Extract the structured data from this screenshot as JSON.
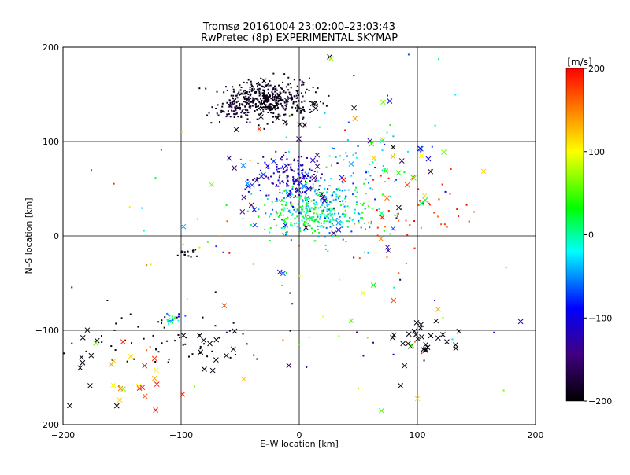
{
  "chart_data": {
    "type": "scatter",
    "title": "Tromsø 20161004 23:02:00–23:03:43",
    "subtitle": "RwPretec (8p) EXPERIMENTAL SKYMAP",
    "xlabel": "E–W location [km]",
    "ylabel": "N–S location [km]",
    "xlim": [
      -200,
      200
    ],
    "ylim": [
      -200,
      200
    ],
    "xticks": [
      -200,
      -100,
      0,
      100,
      200
    ],
    "yticks": [
      -200,
      -100,
      0,
      100,
      200
    ],
    "grid": true,
    "colorbar": {
      "label": "[m/s]",
      "range": [
        -200,
        200
      ],
      "ticks": [
        200,
        100,
        0,
        -100,
        -200
      ],
      "colormap": "rainbow"
    },
    "clusters": [
      {
        "name": "north-arc",
        "x": -25,
        "y": 145,
        "sx": 18,
        "sy": 10,
        "n": 420,
        "v": [
          -200,
          -175
        ],
        "marker": "dot"
      },
      {
        "name": "north-arc-west",
        "x": -55,
        "y": 132,
        "sx": 10,
        "sy": 6,
        "n": 60,
        "v": [
          -200,
          -150
        ],
        "marker": "dot"
      },
      {
        "name": "central-blob",
        "x": 12,
        "y": 28,
        "sx": 20,
        "sy": 14,
        "n": 380,
        "v": [
          -80,
          20
        ],
        "marker": "dot"
      },
      {
        "name": "central-blue",
        "x": -8,
        "y": 62,
        "sx": 14,
        "sy": 14,
        "n": 140,
        "v": [
          -150,
          -95
        ],
        "marker": "dot"
      },
      {
        "name": "diag-east",
        "x": 50,
        "y": 65,
        "sx": 25,
        "sy": 30,
        "n": 80,
        "v": [
          -100,
          0
        ],
        "marker": "dot"
      },
      {
        "name": "east-red",
        "x": 100,
        "y": 25,
        "sx": 25,
        "sy": 20,
        "n": 40,
        "v": [
          150,
          200
        ],
        "marker": "dot"
      },
      {
        "name": "south-west-black",
        "x": -120,
        "y": -110,
        "sx": 40,
        "sy": 20,
        "n": 60,
        "v": [
          -200,
          -180
        ],
        "marker": "dot"
      },
      {
        "name": "sw-cyan",
        "x": -108,
        "y": -88,
        "sx": 4,
        "sy": 3,
        "n": 25,
        "v": [
          -120,
          40
        ],
        "marker": "dot"
      },
      {
        "name": "mid-black",
        "x": -95,
        "y": -18,
        "sx": 4,
        "sy": 4,
        "n": 18,
        "v": [
          -200,
          -190
        ],
        "marker": "dot"
      },
      {
        "name": "scatter-bg",
        "x": 0,
        "y": 0,
        "sx": 110,
        "sy": 100,
        "n": 120,
        "v": [
          -200,
          200
        ],
        "marker": "dot"
      },
      {
        "name": "north-cross",
        "x": -10,
        "y": 135,
        "sx": 20,
        "sy": 15,
        "n": 20,
        "v": [
          -200,
          -180
        ],
        "marker": "x"
      },
      {
        "name": "central-cross",
        "x": -5,
        "y": 60,
        "sx": 25,
        "sy": 25,
        "n": 35,
        "v": [
          -160,
          -60
        ],
        "marker": "x"
      },
      {
        "name": "east-cross",
        "x": 90,
        "y": 80,
        "sx": 25,
        "sy": 40,
        "n": 25,
        "v": [
          -200,
          200
        ],
        "marker": "x"
      },
      {
        "name": "se-cross",
        "x": 105,
        "y": -110,
        "sx": 15,
        "sy": 12,
        "n": 28,
        "v": [
          -200,
          -190
        ],
        "marker": "x"
      },
      {
        "name": "sw-cross-black",
        "x": -175,
        "y": -130,
        "sx": 12,
        "sy": 25,
        "n": 10,
        "v": [
          -200,
          -190
        ],
        "marker": "x"
      },
      {
        "name": "sw-cross-warm",
        "x": -130,
        "y": -150,
        "sx": 15,
        "sy": 20,
        "n": 18,
        "v": [
          100,
          200
        ],
        "marker": "x"
      },
      {
        "name": "s-cross-black",
        "x": -80,
        "y": -120,
        "sx": 15,
        "sy": 15,
        "n": 12,
        "v": [
          -200,
          -190
        ],
        "marker": "x"
      },
      {
        "name": "scatter-cross",
        "x": 0,
        "y": 0,
        "sx": 100,
        "sy": 110,
        "n": 45,
        "v": [
          -200,
          200
        ],
        "marker": "x"
      }
    ]
  }
}
